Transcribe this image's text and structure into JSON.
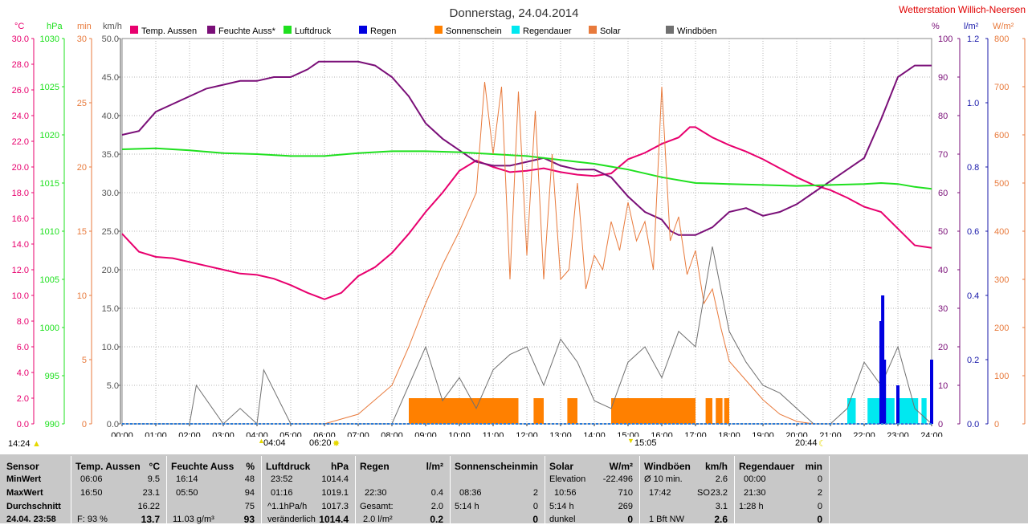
{
  "title": "Donnerstag, 24.04.2014",
  "station": "Wetterstation Willich-Neersen",
  "legend": [
    {
      "label": "Temp. Aussen",
      "color": "#e8006e"
    },
    {
      "label": "Feuchte Auss*",
      "color": "#7a0f78"
    },
    {
      "label": "Luftdruck",
      "color": "#1fe01f"
    },
    {
      "label": "Regen",
      "color": "#0000e0"
    },
    {
      "label": "Sonnenschein",
      "color": "#ff8000"
    },
    {
      "label": "Regendauer",
      "color": "#00e8f0"
    },
    {
      "label": "Solar",
      "color": "#e87a3c"
    },
    {
      "label": "Windböen",
      "color": "#707070"
    }
  ],
  "axes": {
    "temp": {
      "unit": "°C",
      "ticks": [
        "30.0",
        "28.0",
        "26.0",
        "24.0",
        "22.0",
        "20.0",
        "18.0",
        "16.0",
        "14.0",
        "12.0",
        "10.0",
        "8.0",
        "6.0",
        "4.0",
        "2.0",
        "0.0"
      ]
    },
    "pressure": {
      "unit": "hPa",
      "ticks": [
        "1030",
        "1025",
        "1020",
        "1015",
        "1010",
        "1005",
        "1000",
        "995",
        "990"
      ]
    },
    "minutes": {
      "unit": "min",
      "ticks": [
        "30",
        "25",
        "20",
        "15",
        "10",
        "5",
        "0"
      ]
    },
    "wind": {
      "unit": "km/h",
      "ticks": [
        "50.0",
        "45.0",
        "40.0",
        "35.0",
        "30.0",
        "25.0",
        "20.0",
        "15.0",
        "10.0",
        "5.0",
        "0.0"
      ]
    },
    "humidity": {
      "unit": "%",
      "ticks": [
        "100",
        "90",
        "80",
        "70",
        "60",
        "50",
        "40",
        "30",
        "20",
        "10",
        "0"
      ]
    },
    "rain": {
      "unit": "l/m²",
      "ticks": [
        "1.2",
        "1.0",
        "0.8",
        "0.6",
        "0.4",
        "0.2",
        "0.0"
      ]
    },
    "solar": {
      "unit": "W/m²",
      "ticks": [
        "800",
        "700",
        "600",
        "500",
        "400",
        "300",
        "200",
        "100",
        "0"
      ]
    },
    "time": {
      "ticks": [
        "00:00",
        "01:00",
        "02:00",
        "03:00",
        "04:00",
        "05:00",
        "06:00",
        "07:00",
        "08:00",
        "09:00",
        "10:00",
        "11:00",
        "12:00",
        "13:00",
        "14:00",
        "15:00",
        "16:00",
        "17:00",
        "18:00",
        "19:00",
        "20:00",
        "21:00",
        "22:00",
        "23:00",
        "24:00"
      ]
    }
  },
  "day_markers": {
    "daylength": "14:24",
    "sunrise": "04:04",
    "sunset_rise": "06:20",
    "noon": "15:05",
    "sunset": "20:44"
  },
  "chart_data": {
    "type": "line",
    "title": "Donnerstag, 24.04.2014",
    "x_unit": "hour of day",
    "xlim": [
      0,
      24
    ],
    "series": [
      {
        "name": "Temp. Aussen",
        "unit": "°C",
        "ylim": [
          0,
          30
        ],
        "x": [
          0,
          0.5,
          1,
          1.5,
          2,
          2.5,
          3,
          3.5,
          4,
          4.5,
          5,
          5.5,
          6,
          6.5,
          7,
          7.5,
          8,
          8.5,
          9,
          9.5,
          10,
          10.5,
          11,
          11.5,
          12,
          12.5,
          13,
          13.5,
          14,
          14.5,
          15,
          15.5,
          16,
          16.5,
          16.83,
          17,
          17.5,
          18,
          18.5,
          19,
          19.5,
          20,
          20.5,
          21,
          21.5,
          22,
          22.5,
          23,
          23.5,
          24
        ],
        "y": [
          14.8,
          13.4,
          13.0,
          12.9,
          12.6,
          12.3,
          12.0,
          11.7,
          11.6,
          11.3,
          10.8,
          10.2,
          9.7,
          10.2,
          11.5,
          12.2,
          13.3,
          14.8,
          16.5,
          18.0,
          19.7,
          20.5,
          20.0,
          19.6,
          19.7,
          19.9,
          19.6,
          19.4,
          19.3,
          19.5,
          20.6,
          21.1,
          21.8,
          22.3,
          23.1,
          23.1,
          22.3,
          21.7,
          21.2,
          20.6,
          19.9,
          19.2,
          18.6,
          18.2,
          17.6,
          16.9,
          16.5,
          15.2,
          13.9,
          13.7
        ]
      },
      {
        "name": "Feuchte Auss*",
        "unit": "%",
        "ylim": [
          0,
          100
        ],
        "x": [
          0,
          0.5,
          1,
          1.5,
          2,
          2.5,
          3,
          3.5,
          4,
          4.5,
          5,
          5.5,
          5.83,
          6,
          6.5,
          7,
          7.5,
          8,
          8.5,
          9,
          9.5,
          10,
          10.5,
          11,
          11.5,
          12,
          12.5,
          13,
          13.5,
          14,
          14.5,
          15,
          15.5,
          16,
          16.27,
          16.5,
          17,
          17.5,
          18,
          18.5,
          19,
          19.5,
          20,
          20.5,
          21,
          21.5,
          22,
          22.5,
          23,
          23.5,
          24
        ],
        "y": [
          75,
          76,
          81,
          83,
          85,
          87,
          88,
          89,
          89,
          90,
          90,
          92,
          94,
          94,
          94,
          94,
          93,
          90,
          85,
          78,
          74,
          71,
          68,
          67,
          67,
          68,
          69,
          67,
          66,
          66,
          64,
          59,
          55,
          53,
          50,
          49,
          49,
          51,
          55,
          56,
          54,
          55,
          57,
          60,
          63,
          66,
          69,
          79,
          90,
          93,
          93
        ]
      },
      {
        "name": "Luftdruck",
        "unit": "hPa",
        "ylim": [
          990,
          1030
        ],
        "x": [
          0,
          1,
          2,
          3,
          4,
          5,
          6,
          7,
          8,
          9,
          10,
          11,
          12,
          13,
          14,
          15,
          16,
          17,
          18,
          19,
          20,
          21,
          22,
          22.5,
          23,
          23.5,
          24
        ],
        "y": [
          1018.5,
          1018.6,
          1018.4,
          1018.1,
          1018.0,
          1017.8,
          1017.8,
          1018.1,
          1018.3,
          1018.3,
          1018.2,
          1018.0,
          1017.8,
          1017.4,
          1017.0,
          1016.4,
          1015.6,
          1015.0,
          1014.9,
          1014.8,
          1014.7,
          1014.8,
          1014.9,
          1015.0,
          1014.9,
          1014.6,
          1014.4
        ]
      },
      {
        "name": "Solar",
        "unit": "W/m²",
        "ylim": [
          0,
          800
        ],
        "x": [
          6,
          7,
          8,
          8.5,
          9,
          9.5,
          10,
          10.5,
          10.75,
          11,
          11.25,
          11.5,
          11.75,
          12,
          12.25,
          12.5,
          12.75,
          13,
          13.25,
          13.5,
          13.75,
          14,
          14.25,
          14.5,
          14.75,
          15,
          15.25,
          15.5,
          15.75,
          16,
          16.25,
          16.5,
          16.75,
          17,
          17.25,
          17.5,
          17.75,
          18,
          18.5,
          19,
          19.5,
          20,
          20.5,
          21
        ],
        "y": [
          0,
          20,
          80,
          160,
          250,
          330,
          400,
          480,
          710,
          560,
          700,
          300,
          690,
          350,
          650,
          300,
          560,
          300,
          320,
          500,
          280,
          350,
          320,
          420,
          360,
          460,
          380,
          420,
          320,
          700,
          380,
          430,
          310,
          360,
          250,
          280,
          200,
          130,
          90,
          50,
          20,
          5,
          0,
          0
        ]
      },
      {
        "name": "Windböen",
        "unit": "km/h",
        "ylim": [
          0,
          50
        ],
        "x": [
          0,
          2,
          2.2,
          3,
          3.5,
          4,
          4.2,
          5,
          6,
          8,
          8.5,
          9,
          9.5,
          10,
          10.5,
          11,
          11.5,
          12,
          12.5,
          13,
          13.5,
          14,
          14.5,
          15,
          15.5,
          16,
          16.5,
          17,
          17.5,
          18,
          18.5,
          19,
          19.5,
          20,
          20.5,
          21,
          21.5,
          22,
          22.5,
          23,
          23.5,
          24
        ],
        "y": [
          0,
          0,
          5,
          0,
          2,
          0,
          7,
          0,
          0,
          0,
          5,
          10,
          3,
          6,
          2,
          7,
          9,
          10,
          5,
          11,
          8,
          3,
          2,
          8,
          10,
          6,
          12,
          10,
          23,
          12,
          8,
          5,
          4,
          2,
          0,
          0,
          2,
          8,
          5,
          10,
          2,
          0
        ]
      },
      {
        "name": "Regen",
        "unit": "l/m²",
        "ylim": [
          0,
          1.2
        ],
        "x": [
          22.3,
          22.5,
          22.55,
          22.6,
          22.7,
          23.0,
          23.5,
          24
        ],
        "y": [
          0,
          0.32,
          0.4,
          0.2,
          0,
          0.12,
          0,
          0.2
        ]
      }
    ],
    "intervals": [
      {
        "name": "Sonnenschein",
        "unit": "min",
        "ylim": [
          0,
          30
        ],
        "value": 2,
        "ranges": [
          [
            8.5,
            11.75
          ],
          [
            12.2,
            12.5
          ],
          [
            13.2,
            13.5
          ],
          [
            14.5,
            17.0
          ],
          [
            17.3,
            17.5
          ],
          [
            17.6,
            17.8
          ],
          [
            17.85,
            18.0
          ]
        ]
      },
      {
        "name": "Regendauer",
        "unit": "min",
        "ylim": [
          0,
          30
        ],
        "value": 2,
        "ranges": [
          [
            21.5,
            21.75
          ],
          [
            22.1,
            22.5
          ],
          [
            22.6,
            22.9
          ],
          [
            23.0,
            23.6
          ],
          [
            23.7,
            23.85
          ]
        ]
      }
    ]
  },
  "stats": {
    "headers": [
      {
        "title": "Sensor",
        "unit": ""
      },
      {
        "title": "Temp. Aussen",
        "unit": "°C"
      },
      {
        "title": "Feuchte Auss",
        "unit": "%"
      },
      {
        "title": "Luftdruck",
        "unit": "hPa"
      },
      {
        "title": "Regen",
        "unit": "l/m²"
      },
      {
        "title": "Sonnenschein",
        "unit": "min"
      },
      {
        "title": "Solar",
        "unit": "W/m²"
      },
      {
        "title": "Windböen",
        "unit": "km/h"
      },
      {
        "title": "Regendauer",
        "unit": "min"
      }
    ],
    "row_labels": [
      "MinWert",
      "MaxWert",
      "Durchschnitt",
      "24.04. 23:58"
    ],
    "temp": {
      "min_time": "06:06",
      "min": "9.5",
      "max_time": "16:50",
      "max": "23.1",
      "avg": "16.22",
      "cur_note": "F: 93 %",
      "cur": "13.7"
    },
    "humidity": {
      "min_time": "16:14",
      "min": "48",
      "max_time": "05:50",
      "max": "94",
      "avg": "75",
      "cur_note": "11.03 g/m³",
      "cur": "93"
    },
    "pressure": {
      "min_time": "23:52",
      "min": "1014.4",
      "max_time": "01:16",
      "max": "1019.1",
      "avg_note": "^1.1hPa/h",
      "avg": "1017.3",
      "cur_note": "veränderlich",
      "cur": "1014.4"
    },
    "rain": {
      "max_time": "22:30",
      "max": "0.4",
      "avg_note": "Gesamt:",
      "avg": "2.0",
      "cur_note": "2.0 l/m²",
      "cur": "0.2"
    },
    "sunshine": {
      "max_time": "08:36",
      "max": "2",
      "avg_note": "5:14 h",
      "avg": "0",
      "cur": "0"
    },
    "solar": {
      "min_note": "Elevation",
      "min": "-22.496",
      "max_time": "10:56",
      "max": "710",
      "avg_note": "5:14 h",
      "avg": "269",
      "cur_note": "dunkel",
      "cur": "0"
    },
    "wind": {
      "min_note": "Ø 10 min.",
      "min": "2.6",
      "max_time": "17:42",
      "max_dir": "SO",
      "max": "23.2",
      "avg": "3.1",
      "cur_note": "1 Bft NW",
      "cur": "2.6"
    },
    "rainduration": {
      "min_time": "00:00",
      "min": "0",
      "max_time": "21:30",
      "max": "2",
      "avg_note": "1:28 h",
      "avg": "0",
      "cur": "0"
    }
  }
}
